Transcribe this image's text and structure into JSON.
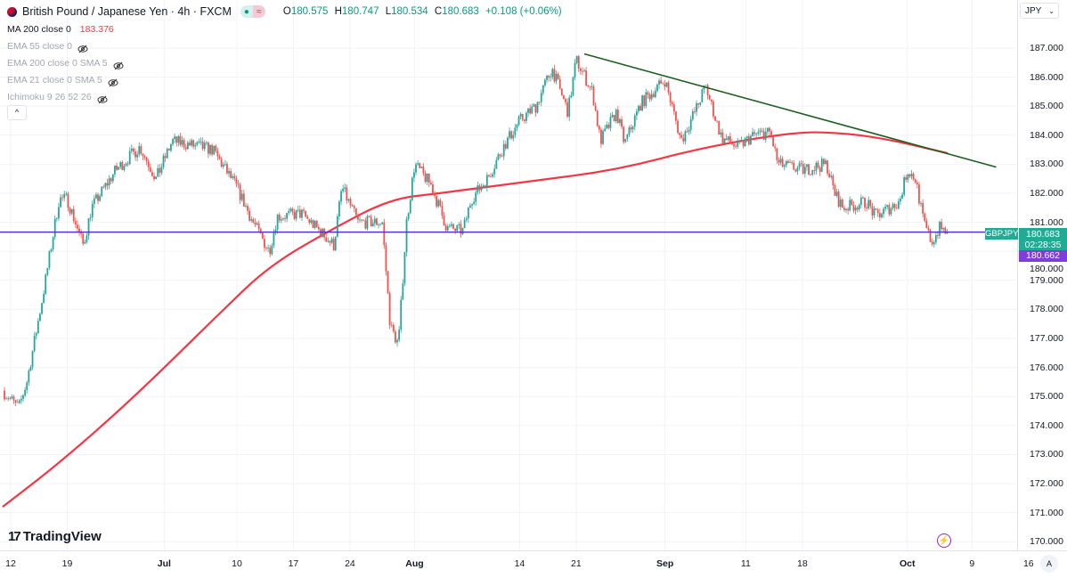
{
  "header": {
    "symbol_title": "British Pound / Japanese Yen · 4h · FXCM",
    "ohlc": {
      "o_label": "O",
      "o": "180.575",
      "h_label": "H",
      "h": "180.747",
      "l_label": "L",
      "l": "180.534",
      "c_label": "C",
      "c": "180.683",
      "change": "+0.108 (+0.06%)"
    },
    "status_icons": [
      "market-open-dot-icon",
      "delayed-data-icon"
    ]
  },
  "indicators": [
    {
      "label": "MA 200 close 0",
      "value": "183.376",
      "visible": true
    },
    {
      "label": "EMA 55 close 0",
      "visible": false
    },
    {
      "label": "EMA 200 close 0 SMA 5",
      "visible": false
    },
    {
      "label": "EMA 21 close 0 SMA 5",
      "visible": false
    },
    {
      "label": "Ichimoku 9 26 52 26",
      "visible": false
    }
  ],
  "collapse_label": "^",
  "currency_selector": {
    "value": "JPY"
  },
  "price_axis": {
    "labels": [
      "187.000",
      "186.000",
      "185.000",
      "184.000",
      "183.000",
      "182.000",
      "181.000",
      "180.000",
      "179.000",
      "178.000",
      "177.000",
      "176.000",
      "175.000",
      "174.000",
      "173.000",
      "172.000",
      "171.000",
      "170.000"
    ]
  },
  "time_axis": {
    "labels": [
      {
        "text": "12",
        "date": "Jun 12"
      },
      {
        "text": "19",
        "date": "Jun 19"
      },
      {
        "text": "Jul",
        "date": "Jul 1",
        "major": true
      },
      {
        "text": "10",
        "date": "Jul 10"
      },
      {
        "text": "17",
        "date": "Jul 17"
      },
      {
        "text": "24",
        "date": "Jul 24"
      },
      {
        "text": "Aug",
        "date": "Aug 1",
        "major": true
      },
      {
        "text": "14",
        "date": "Aug 14"
      },
      {
        "text": "21",
        "date": "Aug 21"
      },
      {
        "text": "Sep",
        "date": "Sep 1",
        "major": true
      },
      {
        "text": "11",
        "date": "Sep 11"
      },
      {
        "text": "18",
        "date": "Sep 18"
      },
      {
        "text": "Oct",
        "date": "Oct 1",
        "major": true
      },
      {
        "text": "9",
        "date": "Oct 9"
      },
      {
        "text": "16",
        "date": "Oct 16"
      }
    ],
    "auto_label": "A"
  },
  "badges": {
    "symbol": "GBPJPY",
    "price": "180.683",
    "countdown": "02:28:35",
    "line_price": "180.662"
  },
  "branding": {
    "logo_text": "TradingView"
  },
  "colors": {
    "up": "#26a69a",
    "down": "#ef5350",
    "ma": "#f23645",
    "trendline": "#1b5e20",
    "hline": "#5b2fc9",
    "badge_green": "#22ab94",
    "badge_purple": "#7e3fd4"
  },
  "chart_data": {
    "type": "candlestick",
    "symbol": "GBPJPY",
    "interval": "4h",
    "ylim": [
      170,
      187.3
    ],
    "close_path": [
      [
        "Jun 11",
        175.2
      ],
      [
        "Jun 13",
        174.6
      ],
      [
        "Jun 14",
        175.5
      ],
      [
        "Jun 16",
        178.5
      ],
      [
        "Jun 18",
        181.8
      ],
      [
        "Jun 19",
        181.8
      ],
      [
        "Jun 21",
        180.2
      ],
      [
        "Jun 22",
        181.5
      ],
      [
        "Jun 25",
        182.8
      ],
      [
        "Jun 28",
        183.6
      ],
      [
        "Jun 30",
        182.5
      ],
      [
        "Jul 2",
        183.8
      ],
      [
        "Jul 7",
        183.5
      ],
      [
        "Jul 10",
        182.2
      ],
      [
        "Jul 12",
        181.0
      ],
      [
        "Jul 14",
        180.0
      ],
      [
        "Jul 15",
        181.2
      ],
      [
        "Jul 18",
        181.3
      ],
      [
        "Jul 21",
        180.5
      ],
      [
        "Jul 22",
        180.2
      ],
      [
        "Jul 23",
        182.2
      ],
      [
        "Jul 25",
        181.0
      ],
      [
        "Jul 28",
        181.0
      ],
      [
        "Jul 29",
        177.4
      ],
      [
        "Jul 30",
        176.8
      ],
      [
        "Jul 31",
        181.0
      ],
      [
        "Aug 1",
        183.0
      ],
      [
        "Aug 3",
        182.3
      ],
      [
        "Aug 5",
        180.8
      ],
      [
        "Aug 7",
        180.7
      ],
      [
        "Aug 8",
        181.8
      ],
      [
        "Aug 10",
        182.5
      ],
      [
        "Aug 12",
        183.6
      ],
      [
        "Aug 14",
        184.5
      ],
      [
        "Aug 16",
        185.0
      ],
      [
        "Aug 18",
        186.3
      ],
      [
        "Aug 20",
        184.8
      ],
      [
        "Aug 21",
        186.6
      ],
      [
        "Aug 23",
        185.5
      ],
      [
        "Aug 24",
        183.8
      ],
      [
        "Aug 26",
        184.8
      ],
      [
        "Aug 27",
        183.7
      ],
      [
        "Aug 29",
        185.1
      ],
      [
        "Sep 1",
        185.9
      ],
      [
        "Sep 3",
        183.8
      ],
      [
        "Sep 5",
        185.0
      ],
      [
        "Sep 6",
        185.7
      ],
      [
        "Sep 8",
        183.9
      ],
      [
        "Sep 10",
        183.6
      ],
      [
        "Sep 12",
        184.0
      ],
      [
        "Sep 14",
        184.1
      ],
      [
        "Sep 15",
        183.0
      ],
      [
        "Sep 18",
        182.8
      ],
      [
        "Sep 21",
        183.0
      ],
      [
        "Sep 22",
        182.0
      ],
      [
        "Sep 23",
        181.5
      ],
      [
        "Sep 26",
        181.7
      ],
      [
        "Sep 27",
        181.2
      ],
      [
        "Sep 30",
        181.7
      ],
      [
        "Oct 1",
        182.8
      ],
      [
        "Oct 2",
        182.5
      ],
      [
        "Oct 3",
        181.0
      ],
      [
        "Oct 4",
        180.3
      ],
      [
        "Oct 5",
        180.8
      ],
      [
        "Oct 6",
        180.68
      ]
    ],
    "ma200": [
      [
        "Jun 11",
        171.2
      ],
      [
        "Jun 18",
        172.7
      ],
      [
        "Jun 27",
        174.9
      ],
      [
        "Jul 8",
        177.9
      ],
      [
        "Jul 14",
        179.5
      ],
      [
        "Jul 22",
        180.8
      ],
      [
        "Jul 29",
        181.8
      ],
      [
        "Aug 4",
        182.0
      ],
      [
        "Aug 15",
        182.4
      ],
      [
        "Aug 26",
        182.8
      ],
      [
        "Sep 6",
        183.6
      ],
      [
        "Sep 17",
        184.1
      ],
      [
        "Sep 22",
        184.1
      ],
      [
        "Sep 28",
        183.9
      ],
      [
        "Oct 6",
        183.38
      ]
    ],
    "trendline": [
      [
        "Aug 22",
        186.8
      ],
      [
        "Oct 12",
        182.9
      ]
    ],
    "horizontal_line": 180.662
  }
}
